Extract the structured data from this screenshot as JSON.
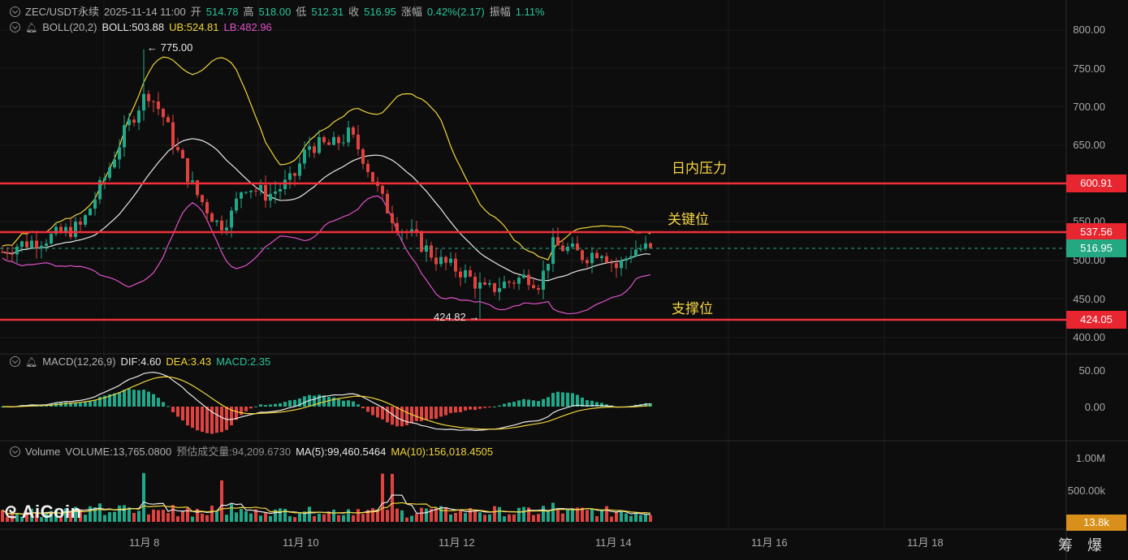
{
  "header": {
    "symbol": "ZEC/USDT永续",
    "datetime": "2025-11-14 11:00",
    "open_label": "开",
    "open": "514.78",
    "high_label": "高",
    "high": "518.00",
    "low_label": "低",
    "low": "512.31",
    "close_label": "收",
    "close": "516.95",
    "change_label": "涨幅",
    "change": "0.42%(2.17)",
    "amplitude_label": "振幅",
    "amplitude": "1.11%"
  },
  "boll": {
    "name": "BOLL(20,2)",
    "mid": "BOLL:503.88",
    "ub": "UB:524.81",
    "lb": "LB:482.96"
  },
  "macd": {
    "name": "MACD(12,26,9)",
    "dif": "DIF:4.60",
    "dea": "DEA:3.43",
    "macd": "MACD:2.35"
  },
  "volume": {
    "name": "Volume",
    "vol": "VOLUME:13,765.0800",
    "est": "预估成交量:94,209.6730",
    "ma5": "MA(5):99,460.5464",
    "ma10": "MA(10):156,018.4505"
  },
  "annotations": {
    "high": "← 775.00",
    "low": "424.82 →"
  },
  "levels": {
    "resistance_label": "日内压力",
    "key_label": "关键位",
    "support_label": "支撑位",
    "resistance": "600.91",
    "key": "537.56",
    "current": "516.95",
    "support": "424.05"
  },
  "price_axis": [
    "800.00",
    "750.00",
    "700.00",
    "650.00",
    "550.00",
    "500.00",
    "450.00",
    "400.00"
  ],
  "macd_axis": [
    "50.00",
    "0.00"
  ],
  "volume_axis": [
    "1.00M",
    "500.00k"
  ],
  "volume_tag": "13.8k",
  "date_axis": [
    "11月 8",
    "11月 10",
    "11月 12",
    "11月 14",
    "11月 16",
    "11月 18"
  ],
  "bottom_icons": "筹爆",
  "logo": "AiCoin",
  "colors": {
    "up": "#1fa98a",
    "down": "#e0433f",
    "ub": "#f0d43a",
    "mid": "#e8e8e8",
    "lb": "#e052c9",
    "level": "#f0303a",
    "current": "#26a982"
  }
}
